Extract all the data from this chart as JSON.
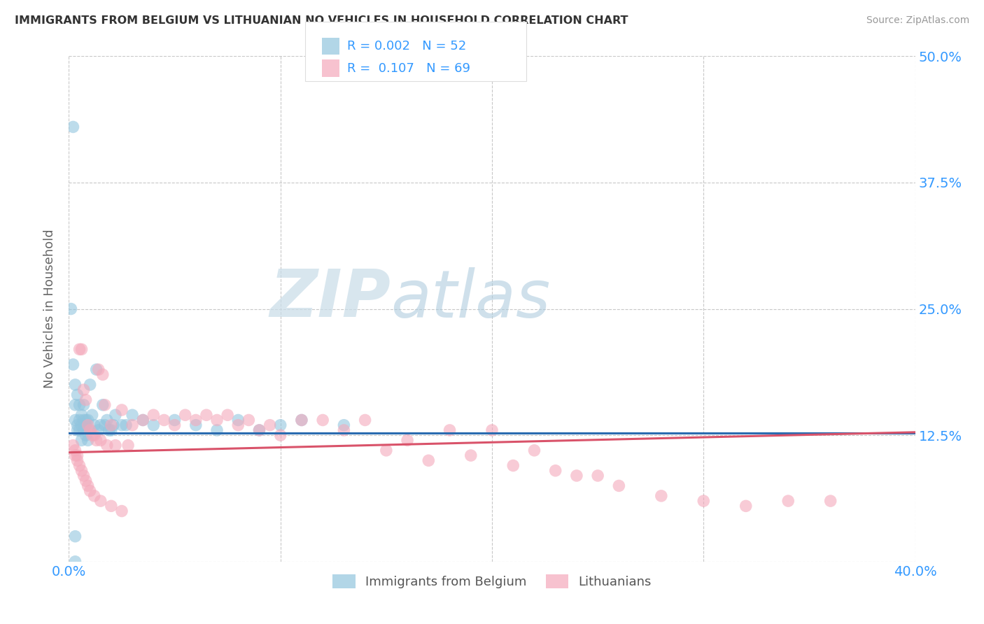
{
  "title": "IMMIGRANTS FROM BELGIUM VS LITHUANIAN NO VEHICLES IN HOUSEHOLD CORRELATION CHART",
  "source": "Source: ZipAtlas.com",
  "ylabel": "No Vehicles in Household",
  "xlim": [
    0.0,
    0.4
  ],
  "ylim": [
    0.0,
    0.5
  ],
  "xticks": [
    0.0,
    0.1,
    0.2,
    0.3,
    0.4
  ],
  "xticklabels": [
    "0.0%",
    "",
    "",
    "",
    "40.0%"
  ],
  "yticks": [
    0.0,
    0.125,
    0.25,
    0.375,
    0.5
  ],
  "right_yticklabels": [
    "",
    "12.5%",
    "25.0%",
    "37.5%",
    "50.0%"
  ],
  "grid_color": "#c8c8c8",
  "background_color": "#ffffff",
  "blue_color": "#92c5de",
  "pink_color": "#f4a9bb",
  "blue_line_color": "#2b6cb0",
  "pink_line_color": "#d9536a",
  "legend_R_blue": "0.002",
  "legend_N_blue": "52",
  "legend_R_pink": "0.107",
  "legend_N_pink": "69",
  "legend_label_blue": "Immigrants from Belgium",
  "legend_label_pink": "Lithuanians",
  "watermark_zip": "ZIP",
  "watermark_atlas": "atlas",
  "blue_trend_start_y": 0.127,
  "blue_trend_end_y": 0.127,
  "pink_trend_start_y": 0.108,
  "pink_trend_end_y": 0.128,
  "blue_x": [
    0.001,
    0.002,
    0.003,
    0.003,
    0.004,
    0.004,
    0.005,
    0.005,
    0.006,
    0.006,
    0.007,
    0.007,
    0.008,
    0.008,
    0.009,
    0.009,
    0.01,
    0.01,
    0.011,
    0.012,
    0.013,
    0.014,
    0.015,
    0.016,
    0.017,
    0.018,
    0.019,
    0.02,
    0.021,
    0.022,
    0.025,
    0.027,
    0.03,
    0.035,
    0.04,
    0.05,
    0.06,
    0.07,
    0.08,
    0.09,
    0.1,
    0.11,
    0.13,
    0.002,
    0.003,
    0.004,
    0.005,
    0.006,
    0.007,
    0.008,
    0.003,
    0.003
  ],
  "blue_y": [
    0.25,
    0.43,
    0.155,
    0.14,
    0.135,
    0.13,
    0.14,
    0.13,
    0.135,
    0.12,
    0.155,
    0.13,
    0.14,
    0.125,
    0.14,
    0.12,
    0.175,
    0.13,
    0.145,
    0.135,
    0.19,
    0.13,
    0.135,
    0.155,
    0.135,
    0.14,
    0.13,
    0.13,
    0.135,
    0.145,
    0.135,
    0.135,
    0.145,
    0.14,
    0.135,
    0.14,
    0.135,
    0.13,
    0.14,
    0.13,
    0.135,
    0.14,
    0.135,
    0.195,
    0.175,
    0.165,
    0.155,
    0.145,
    0.14,
    0.135,
    0.025,
    0.0
  ],
  "pink_x": [
    0.002,
    0.003,
    0.004,
    0.005,
    0.006,
    0.007,
    0.008,
    0.009,
    0.01,
    0.011,
    0.012,
    0.013,
    0.014,
    0.015,
    0.016,
    0.017,
    0.018,
    0.02,
    0.022,
    0.025,
    0.028,
    0.03,
    0.035,
    0.04,
    0.045,
    0.05,
    0.055,
    0.06,
    0.065,
    0.07,
    0.075,
    0.08,
    0.085,
    0.09,
    0.095,
    0.1,
    0.11,
    0.12,
    0.13,
    0.14,
    0.15,
    0.16,
    0.17,
    0.18,
    0.19,
    0.2,
    0.21,
    0.22,
    0.23,
    0.24,
    0.25,
    0.26,
    0.28,
    0.3,
    0.32,
    0.34,
    0.36,
    0.003,
    0.004,
    0.005,
    0.006,
    0.007,
    0.008,
    0.009,
    0.01,
    0.012,
    0.015,
    0.02,
    0.025
  ],
  "pink_y": [
    0.115,
    0.11,
    0.105,
    0.21,
    0.21,
    0.17,
    0.16,
    0.135,
    0.13,
    0.125,
    0.125,
    0.12,
    0.19,
    0.12,
    0.185,
    0.155,
    0.115,
    0.135,
    0.115,
    0.15,
    0.115,
    0.135,
    0.14,
    0.145,
    0.14,
    0.135,
    0.145,
    0.14,
    0.145,
    0.14,
    0.145,
    0.135,
    0.14,
    0.13,
    0.135,
    0.125,
    0.14,
    0.14,
    0.13,
    0.14,
    0.11,
    0.12,
    0.1,
    0.13,
    0.105,
    0.13,
    0.095,
    0.11,
    0.09,
    0.085,
    0.085,
    0.075,
    0.065,
    0.06,
    0.055,
    0.06,
    0.06,
    0.105,
    0.1,
    0.095,
    0.09,
    0.085,
    0.08,
    0.075,
    0.07,
    0.065,
    0.06,
    0.055,
    0.05
  ]
}
